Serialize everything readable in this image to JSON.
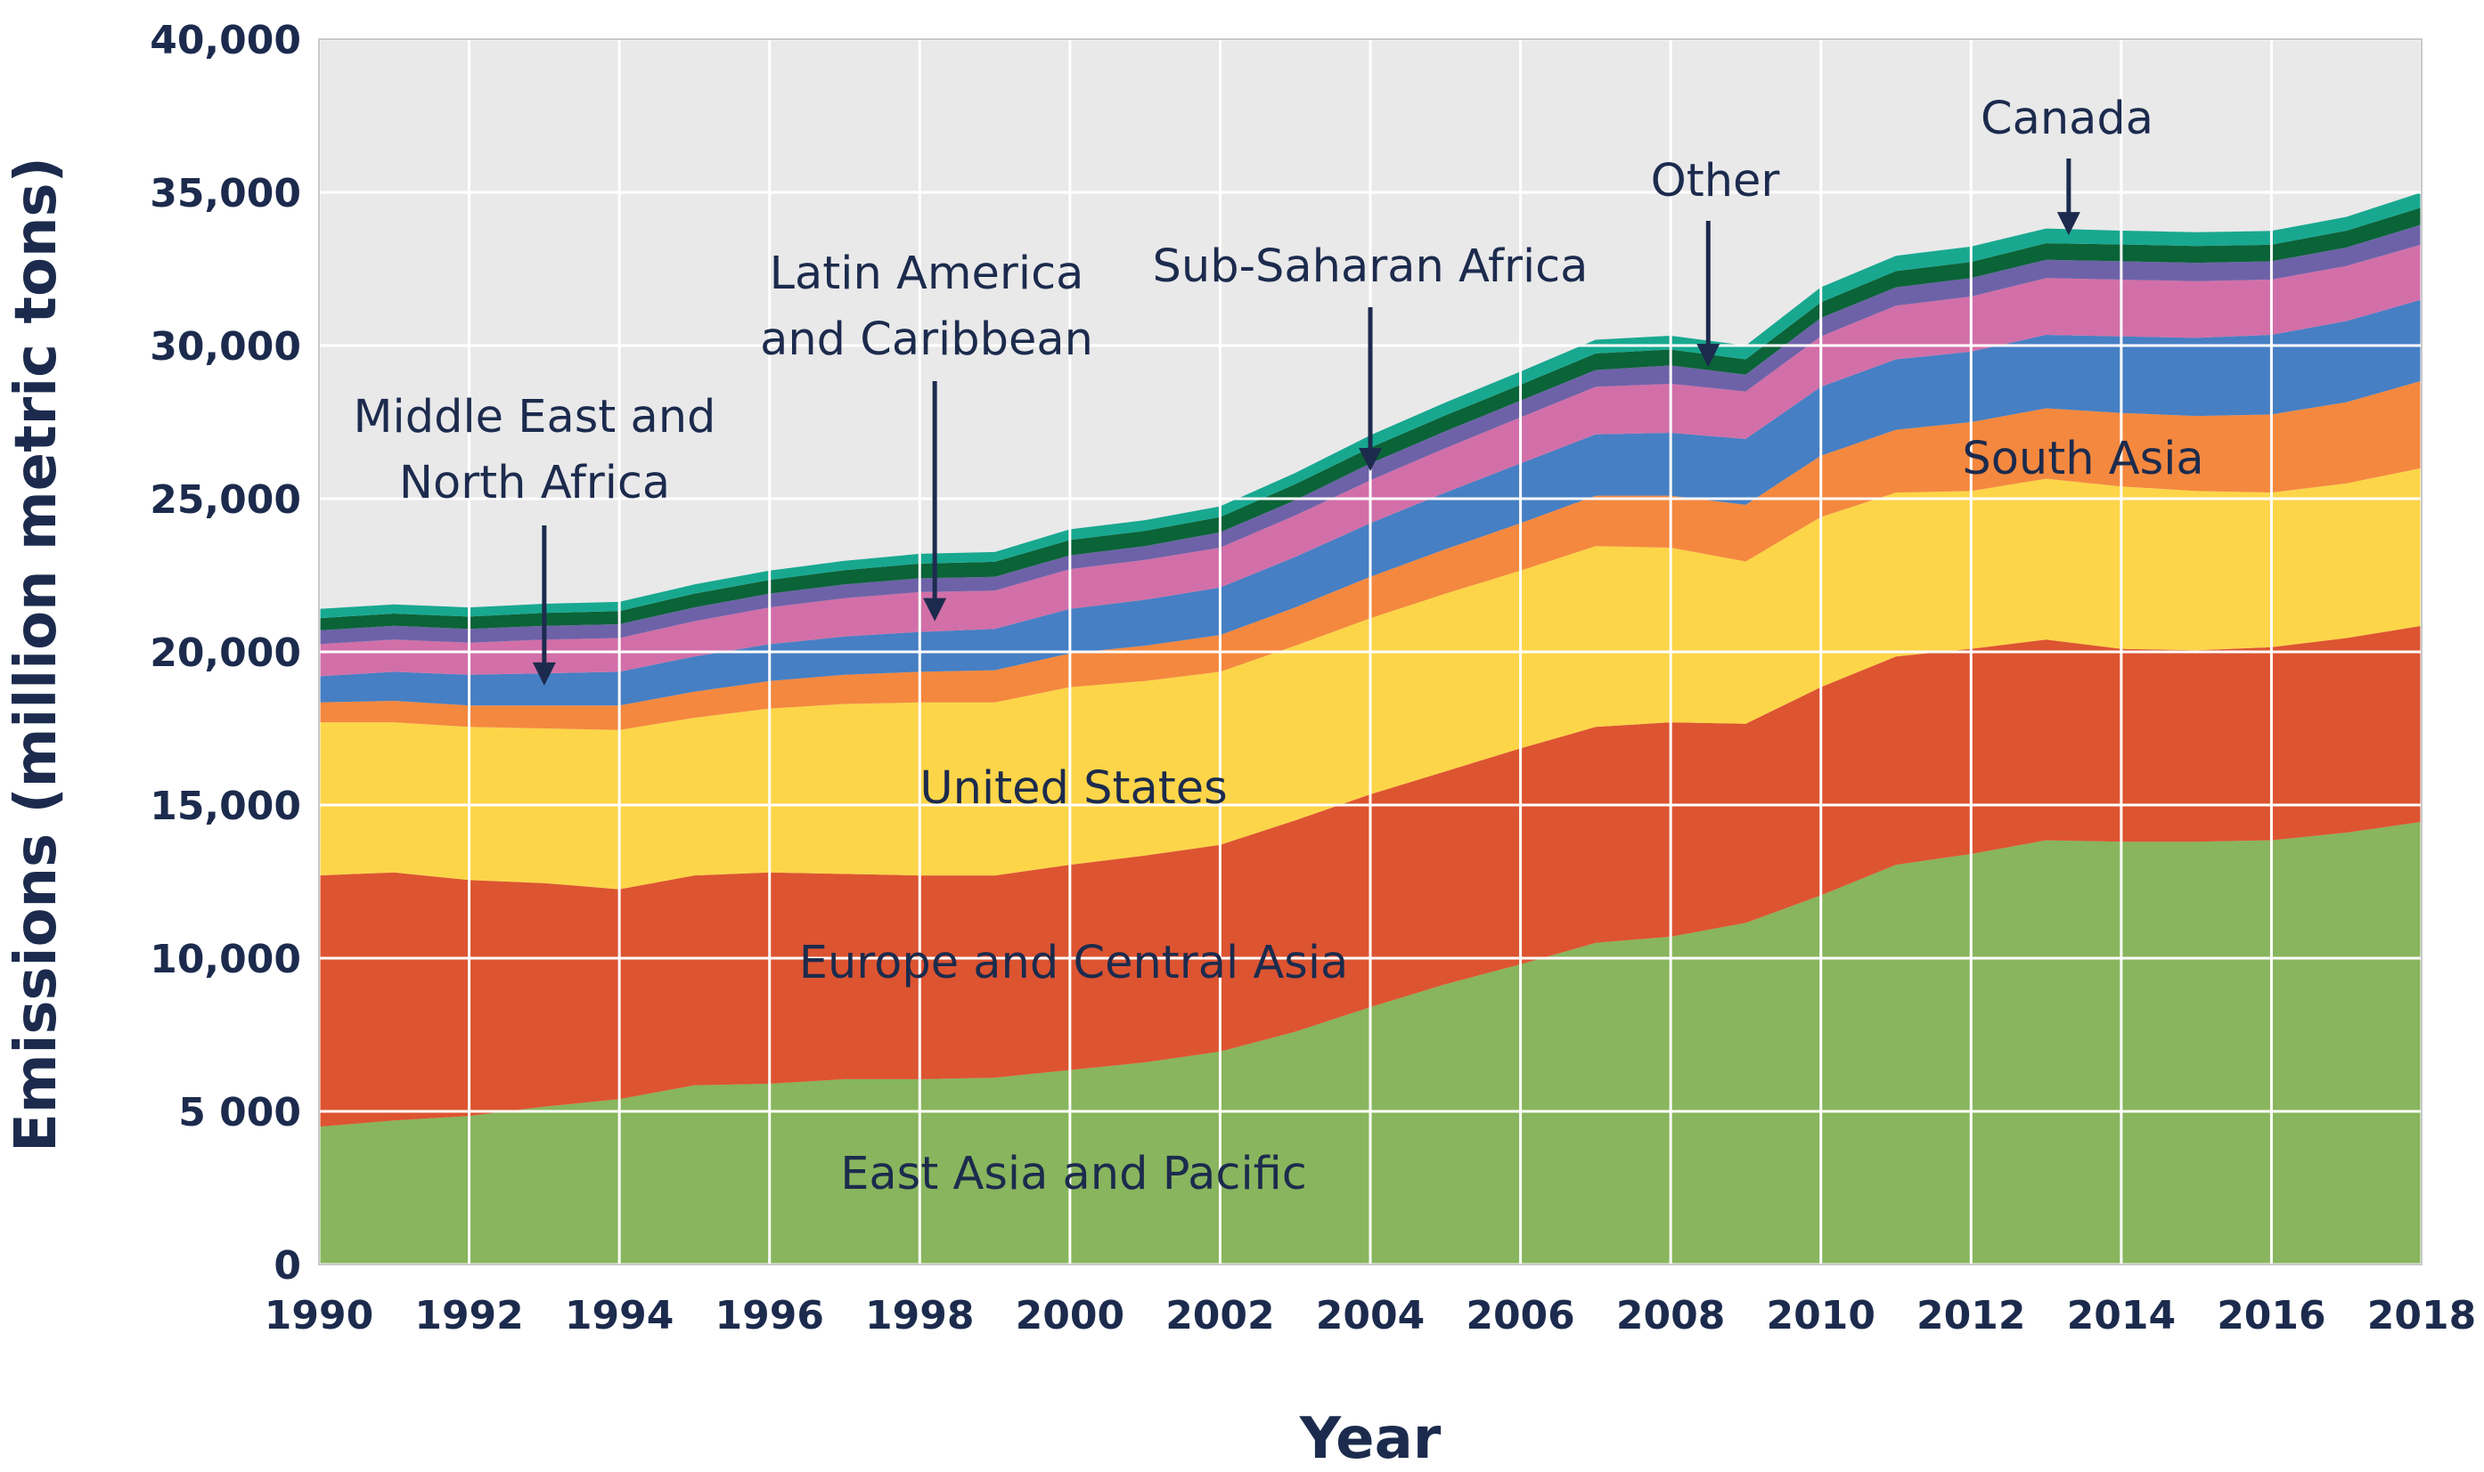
{
  "chart_data": {
    "type": "area",
    "stacked": true,
    "title": "",
    "xlabel": "Year",
    "ylabel": "Emissions (million metric tons)",
    "xlim": [
      1990,
      2018
    ],
    "ylim": [
      0,
      40000
    ],
    "grid": true,
    "x": [
      1990,
      1991,
      1992,
      1993,
      1994,
      1995,
      1996,
      1997,
      1998,
      1999,
      2000,
      2001,
      2002,
      2003,
      2004,
      2005,
      2006,
      2007,
      2008,
      2009,
      2010,
      2011,
      2012,
      2013,
      2014,
      2015,
      2016,
      2017,
      2018
    ],
    "x_ticks": [
      "1990",
      "1992",
      "1994",
      "1996",
      "1998",
      "2000",
      "2002",
      "2004",
      "2006",
      "2008",
      "2010",
      "2012",
      "2014",
      "2016",
      "2018"
    ],
    "y_ticks": [
      {
        "value": 0,
        "label": "0"
      },
      {
        "value": 5000,
        "label": "5 000"
      },
      {
        "value": 10000,
        "label": "10,000"
      },
      {
        "value": 15000,
        "label": "15,000"
      },
      {
        "value": 20000,
        "label": "20,000"
      },
      {
        "value": 25000,
        "label": "25,000"
      },
      {
        "value": 30000,
        "label": "30,000"
      },
      {
        "value": 35000,
        "label": "35,000"
      },
      {
        "value": 40000,
        "label": "40,000"
      }
    ],
    "series": [
      {
        "name": "East Asia and Pacific",
        "color": "#88b55d",
        "values": [
          4500,
          4700,
          4850,
          5150,
          5400,
          5850,
          5900,
          6050,
          6050,
          6100,
          6350,
          6600,
          6950,
          7600,
          8400,
          9150,
          9800,
          10500,
          10700,
          11150,
          12050,
          13050,
          13400,
          13850,
          13800,
          13800,
          13850,
          14100,
          14450
        ]
      },
      {
        "name": "Europe and Central Asia",
        "color": "#dd5431",
        "values": [
          8200,
          8100,
          7700,
          7300,
          6850,
          6850,
          6900,
          6700,
          6650,
          6600,
          6700,
          6750,
          6750,
          6900,
          6950,
          6950,
          7050,
          7050,
          7000,
          6500,
          6800,
          6800,
          6700,
          6550,
          6300,
          6250,
          6300,
          6350,
          6400
        ]
      },
      {
        "name": "United States",
        "color": "#fdd549",
        "values": [
          5000,
          4900,
          5000,
          5050,
          5200,
          5150,
          5350,
          5550,
          5650,
          5650,
          5800,
          5700,
          5650,
          5700,
          5750,
          5800,
          5800,
          5900,
          5700,
          5300,
          5550,
          5350,
          5150,
          5250,
          5300,
          5200,
          5050,
          5050,
          5150
        ]
      },
      {
        "name": "South Asia",
        "color": "#f4883f",
        "values": [
          650,
          700,
          700,
          750,
          800,
          850,
          900,
          950,
          1000,
          1050,
          1100,
          1150,
          1200,
          1250,
          1350,
          1450,
          1550,
          1650,
          1700,
          1850,
          2000,
          2050,
          2250,
          2300,
          2400,
          2450,
          2550,
          2650,
          2850
        ]
      },
      {
        "name": "Middle East and North Africa",
        "color": "#467fc3",
        "values": [
          850,
          950,
          1000,
          1050,
          1100,
          1150,
          1200,
          1250,
          1300,
          1350,
          1450,
          1500,
          1550,
          1650,
          1750,
          1850,
          1950,
          2000,
          2050,
          2150,
          2250,
          2300,
          2300,
          2400,
          2500,
          2550,
          2600,
          2650,
          2650
        ]
      },
      {
        "name": "Latin America and Caribbean",
        "color": "#d26fa8",
        "values": [
          1050,
          1050,
          1050,
          1100,
          1100,
          1150,
          1200,
          1250,
          1300,
          1250,
          1300,
          1300,
          1300,
          1350,
          1400,
          1450,
          1500,
          1550,
          1600,
          1550,
          1650,
          1750,
          1800,
          1850,
          1850,
          1850,
          1800,
          1800,
          1800
        ]
      },
      {
        "name": "Sub-Saharan Africa",
        "color": "#6d62a8",
        "values": [
          450,
          450,
          450,
          450,
          450,
          450,
          450,
          450,
          450,
          450,
          450,
          450,
          500,
          500,
          550,
          550,
          550,
          550,
          600,
          550,
          600,
          600,
          600,
          600,
          600,
          600,
          600,
          600,
          650
        ]
      },
      {
        "name": "Canada",
        "color": "#0b6338",
        "values": [
          400,
          400,
          400,
          420,
          430,
          450,
          450,
          470,
          480,
          490,
          500,
          500,
          500,
          520,
          520,
          520,
          520,
          540,
          520,
          500,
          510,
          530,
          530,
          540,
          550,
          550,
          540,
          550,
          560
        ]
      },
      {
        "name": "Other",
        "color": "#18a890",
        "values": [
          300,
          300,
          300,
          300,
          300,
          300,
          300,
          300,
          320,
          320,
          350,
          350,
          350,
          370,
          400,
          420,
          430,
          450,
          450,
          450,
          490,
          500,
          500,
          480,
          450,
          450,
          450,
          450,
          490
        ]
      }
    ],
    "annotations": [
      {
        "series": "East Asia and Pacific",
        "lines": [
          "East Asia and Pacific"
        ]
      },
      {
        "series": "Europe and Central Asia",
        "lines": [
          "Europe and Central Asia"
        ]
      },
      {
        "series": "United States",
        "lines": [
          "United States"
        ]
      },
      {
        "series": "South Asia",
        "lines": [
          "South Asia"
        ]
      },
      {
        "series": "Middle East and North Africa",
        "lines": [
          "Middle East and",
          "North Africa"
        ],
        "arrow_to": [
          1993,
          18900
        ]
      },
      {
        "series": "Latin America and Caribbean",
        "lines": [
          "Latin America",
          "and Caribbean"
        ],
        "arrow_to": [
          1998.2,
          21000
        ]
      },
      {
        "series": "Sub-Saharan Africa",
        "lines": [
          "Sub-Saharan Africa"
        ],
        "arrow_to": [
          2004,
          25900
        ]
      },
      {
        "series": "Other",
        "lines": [
          "Other"
        ],
        "arrow_to": [
          2008.5,
          29300
        ]
      },
      {
        "series": "Canada",
        "lines": [
          "Canada"
        ],
        "arrow_to": [
          2013.3,
          33600
        ]
      }
    ]
  }
}
